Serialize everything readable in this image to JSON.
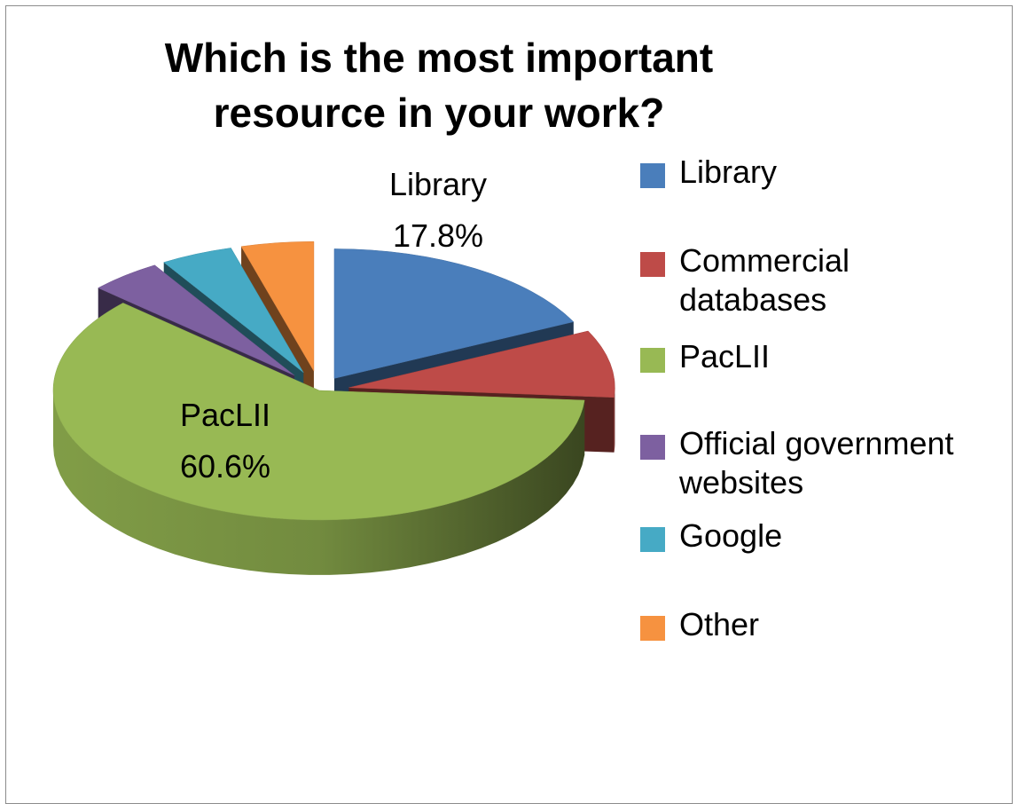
{
  "chart_data": {
    "type": "pie",
    "title": "Which is the most important resource in your work?",
    "title_lines": [
      "Which is the most important",
      "resource in your work?"
    ],
    "slices": [
      {
        "name": "Library",
        "value": 17.8,
        "color": "#4a7ebb"
      },
      {
        "name": "Commercial databases",
        "value": 8.4,
        "color": "#be4b48"
      },
      {
        "name": "PacLII",
        "value": 60.6,
        "color": "#98b954"
      },
      {
        "name": "Official government websites",
        "value": 4.4,
        "color": "#7d60a0"
      },
      {
        "name": "Google",
        "value": 4.4,
        "color": "#46aac5"
      },
      {
        "name": "Other",
        "value": 4.4,
        "color": "#f69240"
      }
    ],
    "data_labels": [
      {
        "name": "Library",
        "value_text": "17.8%"
      },
      {
        "name": "PacLII",
        "value_text": "60.6%"
      }
    ],
    "legend_position": "right",
    "style": "3d-exploded-pie"
  }
}
